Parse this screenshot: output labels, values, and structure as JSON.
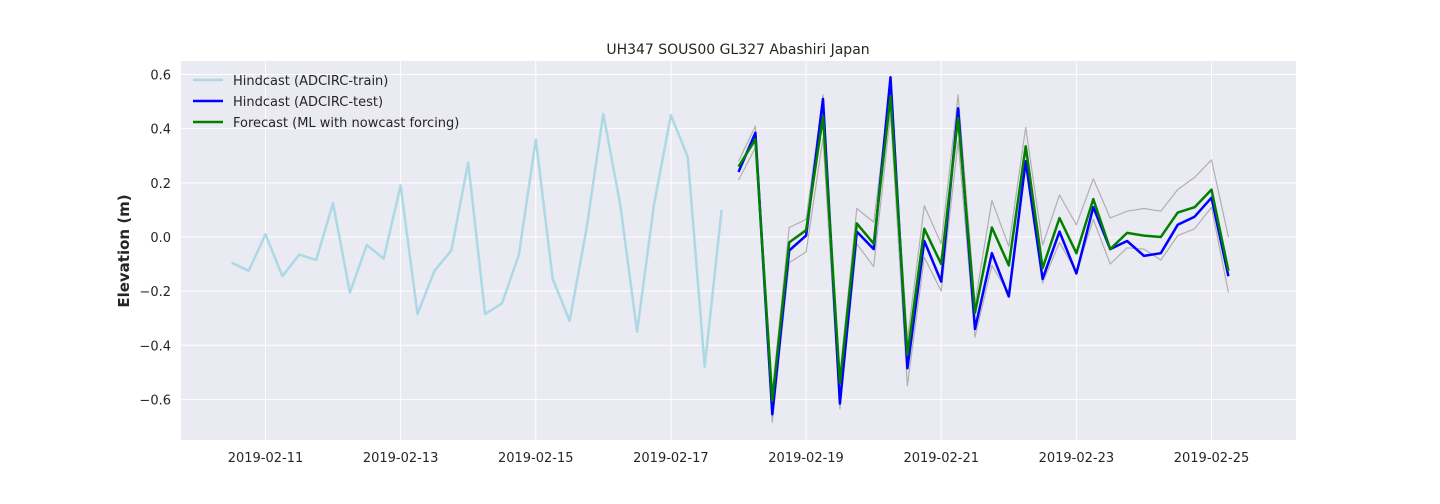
{
  "chart_data": {
    "type": "line",
    "title": "UH347 SOUS00 GL327 Abashiri Japan",
    "xlabel": "",
    "ylabel": "Elevation (m)",
    "x_ticks": [
      "2019-02-11",
      "2019-02-13",
      "2019-02-15",
      "2019-02-17",
      "2019-02-19",
      "2019-02-21",
      "2019-02-23",
      "2019-02-25"
    ],
    "y_ticks": [
      "−0.6",
      "−0.4",
      "−0.2",
      "0.0",
      "0.2",
      "0.4",
      "0.6"
    ],
    "xlim": [
      "2019-02-09 18:00",
      "2019-02-26 06:00"
    ],
    "ylim": [
      -0.75,
      0.65
    ],
    "grid": true,
    "legend_position": "top-left",
    "legend": [
      {
        "label": "Hindcast (ADCIRC-train)",
        "color": "#add8e6"
      },
      {
        "label": "Hindcast (ADCIRC-test)",
        "color": "#0000ff"
      },
      {
        "label": "Forecast (ML with nowcast forcing)",
        "color": "#008000"
      }
    ],
    "series": [
      {
        "name": "Hindcast (ADCIRC-train)",
        "color": "#add8e6",
        "x": [
          "2019-02-10 12:00",
          "2019-02-10 18:00",
          "2019-02-11 00:00",
          "2019-02-11 06:00",
          "2019-02-11 12:00",
          "2019-02-11 18:00",
          "2019-02-12 00:00",
          "2019-02-12 06:00",
          "2019-02-12 12:00",
          "2019-02-12 18:00",
          "2019-02-13 00:00",
          "2019-02-13 06:00",
          "2019-02-13 12:00",
          "2019-02-13 18:00",
          "2019-02-14 00:00",
          "2019-02-14 06:00",
          "2019-02-14 12:00",
          "2019-02-14 18:00",
          "2019-02-15 00:00",
          "2019-02-15 06:00",
          "2019-02-15 12:00",
          "2019-02-15 18:00",
          "2019-02-16 00:00",
          "2019-02-16 06:00",
          "2019-02-16 12:00",
          "2019-02-16 18:00",
          "2019-02-17 00:00",
          "2019-02-17 06:00",
          "2019-02-17 12:00",
          "2019-02-17 18:00"
        ],
        "values": [
          -0.095,
          -0.125,
          0.01,
          -0.145,
          -0.065,
          -0.085,
          0.125,
          -0.205,
          -0.03,
          -0.08,
          0.19,
          -0.285,
          -0.125,
          -0.05,
          0.275,
          -0.285,
          -0.245,
          -0.065,
          0.36,
          -0.155,
          -0.31,
          0.03,
          0.455,
          0.12,
          -0.35,
          0.12,
          0.45,
          0.295,
          -0.48,
          0.1
        ]
      },
      {
        "name": "Hindcast (ADCIRC-test)",
        "color": "#0000ff",
        "x": [
          "2019-02-18 00:00",
          "2019-02-18 06:00",
          "2019-02-18 12:00",
          "2019-02-18 18:00",
          "2019-02-19 00:00",
          "2019-02-19 06:00",
          "2019-02-19 12:00",
          "2019-02-19 18:00",
          "2019-02-20 00:00",
          "2019-02-20 06:00",
          "2019-02-20 12:00",
          "2019-02-20 18:00",
          "2019-02-21 00:00",
          "2019-02-21 06:00",
          "2019-02-21 12:00",
          "2019-02-21 18:00",
          "2019-02-22 00:00",
          "2019-02-22 06:00",
          "2019-02-22 12:00",
          "2019-02-22 18:00",
          "2019-02-23 00:00",
          "2019-02-23 06:00",
          "2019-02-23 12:00",
          "2019-02-23 18:00",
          "2019-02-24 00:00",
          "2019-02-24 06:00",
          "2019-02-24 12:00",
          "2019-02-24 18:00",
          "2019-02-25 00:00",
          "2019-02-25 06:00"
        ],
        "values": [
          0.24,
          0.385,
          -0.655,
          -0.05,
          0.005,
          0.51,
          -0.615,
          0.02,
          -0.045,
          0.59,
          -0.485,
          -0.015,
          -0.165,
          0.475,
          -0.34,
          -0.06,
          -0.22,
          0.28,
          -0.155,
          0.02,
          -0.135,
          0.11,
          -0.045,
          -0.015,
          -0.07,
          -0.06,
          0.045,
          0.075,
          0.145,
          -0.145
        ]
      },
      {
        "name": "Forecast (ML with nowcast forcing)",
        "color": "#008000",
        "x": [
          "2019-02-18 00:00",
          "2019-02-18 06:00",
          "2019-02-18 12:00",
          "2019-02-18 18:00",
          "2019-02-19 00:00",
          "2019-02-19 06:00",
          "2019-02-19 12:00",
          "2019-02-19 18:00",
          "2019-02-20 00:00",
          "2019-02-20 06:00",
          "2019-02-20 12:00",
          "2019-02-20 18:00",
          "2019-02-21 00:00",
          "2019-02-21 06:00",
          "2019-02-21 12:00",
          "2019-02-21 18:00",
          "2019-02-22 00:00",
          "2019-02-22 06:00",
          "2019-02-22 12:00",
          "2019-02-22 18:00",
          "2019-02-23 00:00",
          "2019-02-23 06:00",
          "2019-02-23 12:00",
          "2019-02-23 18:00",
          "2019-02-24 00:00",
          "2019-02-24 06:00",
          "2019-02-24 12:00",
          "2019-02-24 18:00",
          "2019-02-25 00:00",
          "2019-02-25 06:00"
        ],
        "values": [
          0.26,
          0.36,
          -0.605,
          -0.02,
          0.025,
          0.445,
          -0.54,
          0.05,
          -0.025,
          0.52,
          -0.435,
          0.03,
          -0.1,
          0.44,
          -0.28,
          0.035,
          -0.105,
          0.335,
          -0.115,
          0.07,
          -0.06,
          0.14,
          -0.045,
          0.015,
          0.005,
          0.0,
          0.09,
          0.11,
          0.175,
          -0.125
        ]
      },
      {
        "color": "#b0b0b0",
        "x": [
          "2019-02-18 00:00",
          "2019-02-18 06:00",
          "2019-02-18 12:00",
          "2019-02-18 18:00",
          "2019-02-19 00:00",
          "2019-02-19 06:00",
          "2019-02-19 12:00",
          "2019-02-19 18:00",
          "2019-02-20 00:00",
          "2019-02-20 06:00",
          "2019-02-20 12:00",
          "2019-02-20 18:00",
          "2019-02-21 00:00",
          "2019-02-21 06:00",
          "2019-02-21 12:00",
          "2019-02-21 18:00",
          "2019-02-22 00:00",
          "2019-02-22 06:00",
          "2019-02-22 12:00",
          "2019-02-22 18:00",
          "2019-02-23 00:00",
          "2019-02-23 06:00",
          "2019-02-23 12:00",
          "2019-02-23 18:00",
          "2019-02-24 00:00",
          "2019-02-24 06:00",
          "2019-02-24 12:00",
          "2019-02-24 18:00",
          "2019-02-25 00:00",
          "2019-02-25 06:00"
        ],
        "values": [
          0.28,
          0.41,
          -0.575,
          0.035,
          0.065,
          0.525,
          -0.51,
          0.105,
          0.055,
          0.55,
          -0.38,
          0.115,
          -0.025,
          0.525,
          -0.245,
          0.135,
          -0.035,
          0.405,
          -0.03,
          0.155,
          0.045,
          0.215,
          0.07,
          0.095,
          0.105,
          0.095,
          0.175,
          0.22,
          0.285,
          0.0
        ]
      },
      {
        "color": "#b0b0b0",
        "x": [
          "2019-02-18 00:00",
          "2019-02-18 06:00",
          "2019-02-18 12:00",
          "2019-02-18 18:00",
          "2019-02-19 00:00",
          "2019-02-19 06:00",
          "2019-02-19 12:00",
          "2019-02-19 18:00",
          "2019-02-20 00:00",
          "2019-02-20 06:00",
          "2019-02-20 12:00",
          "2019-02-20 18:00",
          "2019-02-21 00:00",
          "2019-02-21 06:00",
          "2019-02-21 12:00",
          "2019-02-21 18:00",
          "2019-02-22 00:00",
          "2019-02-22 06:00",
          "2019-02-22 12:00",
          "2019-02-22 18:00",
          "2019-02-23 00:00",
          "2019-02-23 06:00",
          "2019-02-23 12:00",
          "2019-02-23 18:00",
          "2019-02-24 00:00",
          "2019-02-24 06:00",
          "2019-02-24 12:00",
          "2019-02-24 18:00",
          "2019-02-25 00:00",
          "2019-02-25 06:00"
        ],
        "values": [
          0.21,
          0.33,
          -0.685,
          -0.095,
          -0.055,
          0.365,
          -0.635,
          -0.025,
          -0.11,
          0.455,
          -0.55,
          -0.075,
          -0.2,
          0.355,
          -0.37,
          -0.105,
          -0.21,
          0.265,
          -0.17,
          -0.02,
          -0.13,
          0.065,
          -0.1,
          -0.04,
          -0.045,
          -0.085,
          0.005,
          0.03,
          0.11,
          -0.205
        ]
      }
    ]
  }
}
